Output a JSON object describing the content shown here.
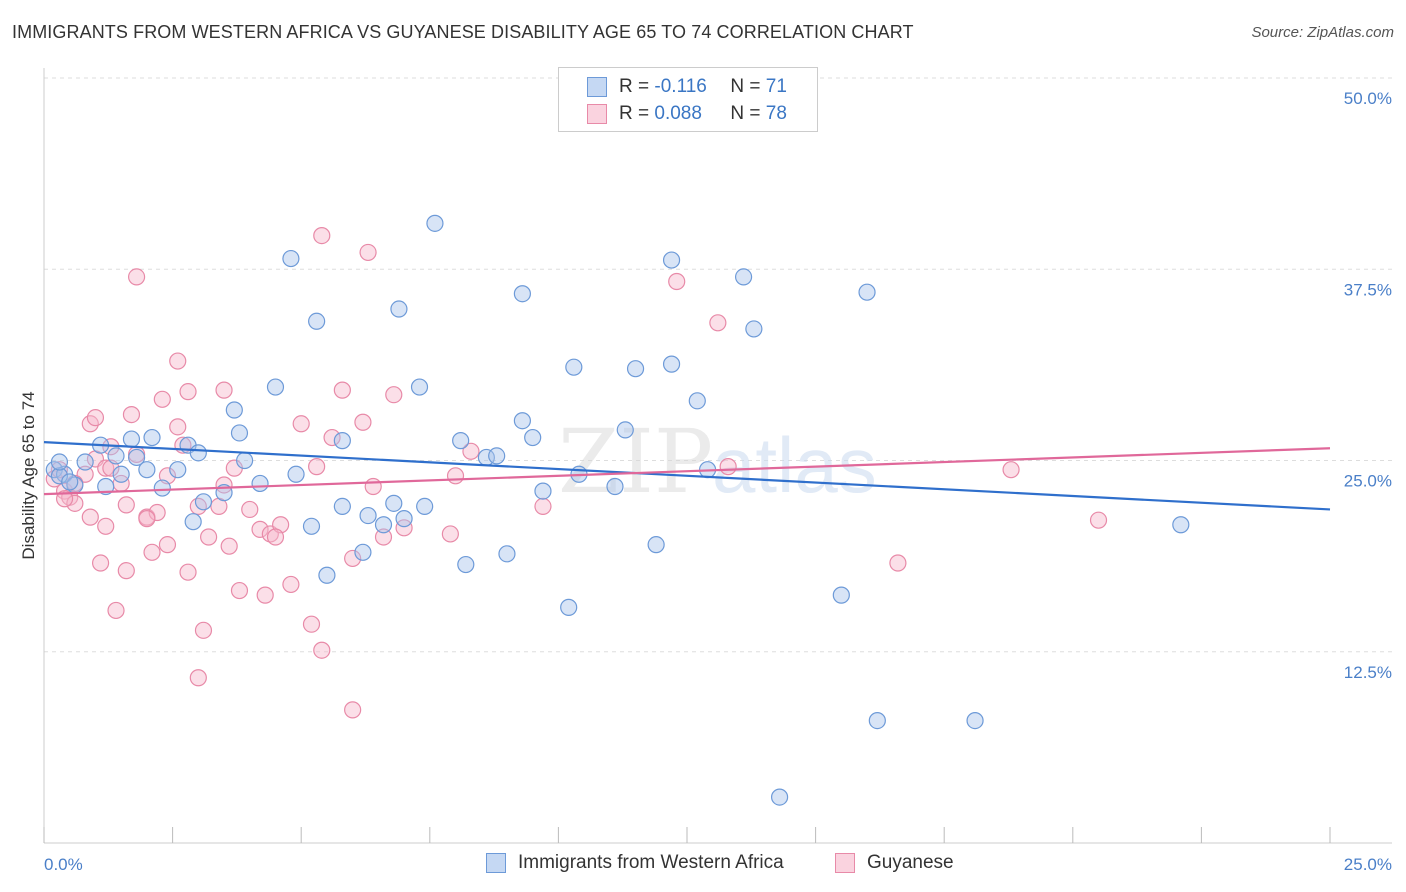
{
  "header": {
    "title": "IMMIGRANTS FROM WESTERN AFRICA VS GUYANESE DISABILITY AGE 65 TO 74 CORRELATION CHART",
    "source": "Source: ZipAtlas.com"
  },
  "legend": {
    "r_label": "R =",
    "n_label": "N =",
    "rows": [
      {
        "r": "-0.116",
        "n": "71"
      },
      {
        "r": "0.088",
        "n": "78"
      }
    ]
  },
  "colors": {
    "blue_fill": "#a8c4ec",
    "blue_stroke": "#6d9ad8",
    "blue_line": "#2f6fcc",
    "pink_fill": "#f6b8cc",
    "pink_stroke": "#e88aa8",
    "pink_line": "#e0689a",
    "grid": "#dddddd",
    "tick_text": "#4a7fc8"
  },
  "watermark": {
    "zip": "ZIP",
    "atlas": "atlas"
  },
  "chart_data": {
    "type": "scatter",
    "title": "IMMIGRANTS FROM WESTERN AFRICA VS GUYANESE DISABILITY AGE 65 TO 74 CORRELATION CHART",
    "xlabel": "",
    "ylabel": "Disability Age 65 to 74",
    "xlim": [
      0,
      25
    ],
    "ylim": [
      0,
      50
    ],
    "x_tick_labels": [
      "0.0%",
      "25.0%"
    ],
    "y_ticks": [
      12.5,
      25,
      37.5,
      50
    ],
    "y_tick_labels": [
      "12.5%",
      "25.0%",
      "37.5%",
      "50.0%"
    ],
    "grid": true,
    "legend_position": "top-center",
    "series": [
      {
        "name": "Immigrants from Western Africa",
        "r": -0.116,
        "n": 71,
        "trend": {
          "x": [
            0,
            25
          ],
          "y": [
            26.2,
            21.8
          ]
        },
        "points": [
          [
            0.2,
            24.4
          ],
          [
            0.4,
            24.1
          ],
          [
            0.6,
            23.4
          ],
          [
            0.3,
            24.0
          ],
          [
            0.5,
            23.6
          ],
          [
            0.8,
            24.9
          ],
          [
            1.1,
            26.0
          ],
          [
            1.4,
            25.3
          ],
          [
            1.7,
            26.4
          ],
          [
            1.8,
            25.2
          ],
          [
            1.5,
            24.1
          ],
          [
            2.0,
            24.4
          ],
          [
            2.1,
            26.5
          ],
          [
            2.3,
            23.2
          ],
          [
            1.2,
            23.3
          ],
          [
            2.6,
            24.4
          ],
          [
            2.8,
            26.0
          ],
          [
            3.1,
            22.3
          ],
          [
            3.5,
            22.9
          ],
          [
            3.9,
            25.0
          ],
          [
            4.2,
            23.5
          ],
          [
            4.5,
            29.8
          ],
          [
            3.7,
            28.3
          ],
          [
            2.9,
            21.0
          ],
          [
            3.8,
            26.8
          ],
          [
            4.9,
            24.1
          ],
          [
            5.2,
            20.7
          ],
          [
            5.5,
            17.5
          ],
          [
            5.8,
            22.0
          ],
          [
            6.3,
            21.4
          ],
          [
            6.8,
            22.2
          ],
          [
            6.6,
            20.8
          ],
          [
            7.0,
            21.2
          ],
          [
            7.4,
            22.0
          ],
          [
            8.1,
            26.3
          ],
          [
            8.6,
            25.2
          ],
          [
            8.8,
            25.3
          ],
          [
            9.3,
            27.6
          ],
          [
            9.5,
            26.5
          ],
          [
            9.0,
            18.9
          ],
          [
            9.7,
            23.0
          ],
          [
            10.4,
            24.1
          ],
          [
            11.1,
            23.3
          ],
          [
            11.3,
            27.0
          ],
          [
            11.9,
            19.5
          ],
          [
            12.7,
            28.9
          ],
          [
            12.9,
            24.4
          ],
          [
            13.6,
            37.0
          ],
          [
            13.8,
            33.6
          ],
          [
            7.6,
            40.5
          ],
          [
            4.8,
            38.2
          ],
          [
            5.3,
            34.1
          ],
          [
            6.9,
            34.9
          ],
          [
            9.3,
            35.9
          ],
          [
            12.2,
            38.1
          ],
          [
            10.3,
            31.1
          ],
          [
            11.5,
            31.0
          ],
          [
            12.2,
            31.3
          ],
          [
            16.0,
            36.0
          ],
          [
            7.3,
            29.8
          ],
          [
            3.0,
            25.5
          ],
          [
            5.8,
            26.3
          ],
          [
            6.2,
            19.0
          ],
          [
            8.2,
            18.2
          ],
          [
            10.2,
            15.4
          ],
          [
            15.5,
            16.2
          ],
          [
            16.2,
            8.0
          ],
          [
            18.1,
            8.0
          ],
          [
            14.3,
            3.0
          ],
          [
            22.1,
            20.8
          ],
          [
            0.3,
            24.9
          ]
        ]
      },
      {
        "name": "Guyanese",
        "r": 0.088,
        "n": 78,
        "trend": {
          "x": [
            0,
            25
          ],
          "y": [
            22.8,
            25.8
          ]
        },
        "points": [
          [
            0.2,
            23.8
          ],
          [
            0.3,
            24.4
          ],
          [
            0.4,
            23.0
          ],
          [
            0.5,
            22.6
          ],
          [
            0.6,
            22.2
          ],
          [
            0.8,
            24.1
          ],
          [
            0.9,
            27.4
          ],
          [
            1.0,
            25.1
          ],
          [
            1.2,
            24.5
          ],
          [
            1.3,
            25.9
          ],
          [
            1.5,
            23.5
          ],
          [
            1.6,
            22.1
          ],
          [
            1.8,
            25.4
          ],
          [
            2.0,
            21.3
          ],
          [
            2.2,
            21.6
          ],
          [
            2.4,
            24.0
          ],
          [
            2.6,
            27.2
          ],
          [
            2.8,
            29.5
          ],
          [
            3.0,
            22.0
          ],
          [
            3.2,
            20.0
          ],
          [
            3.4,
            22.0
          ],
          [
            3.5,
            29.6
          ],
          [
            3.7,
            24.5
          ],
          [
            4.0,
            21.8
          ],
          [
            4.2,
            20.5
          ],
          [
            4.4,
            20.2
          ],
          [
            4.6,
            20.8
          ],
          [
            4.8,
            16.9
          ],
          [
            5.0,
            27.4
          ],
          [
            5.2,
            14.3
          ],
          [
            5.4,
            12.6
          ],
          [
            5.6,
            26.5
          ],
          [
            5.8,
            29.6
          ],
          [
            6.0,
            18.6
          ],
          [
            6.2,
            27.5
          ],
          [
            6.4,
            23.3
          ],
          [
            6.6,
            20.0
          ],
          [
            6.8,
            29.3
          ],
          [
            7.0,
            20.6
          ],
          [
            1.8,
            37.0
          ],
          [
            2.6,
            31.5
          ],
          [
            5.4,
            39.7
          ],
          [
            6.3,
            38.6
          ],
          [
            1.7,
            28.0
          ],
          [
            1.0,
            27.8
          ],
          [
            2.0,
            21.2
          ],
          [
            1.2,
            20.7
          ],
          [
            1.4,
            15.2
          ],
          [
            1.6,
            17.8
          ],
          [
            2.1,
            19.0
          ],
          [
            3.1,
            13.9
          ],
          [
            3.0,
            10.8
          ],
          [
            3.6,
            19.4
          ],
          [
            4.3,
            16.2
          ],
          [
            2.8,
            17.7
          ],
          [
            1.1,
            18.3
          ],
          [
            2.4,
            19.5
          ],
          [
            3.8,
            16.5
          ],
          [
            6.0,
            8.7
          ],
          [
            8.0,
            24.0
          ],
          [
            8.3,
            25.6
          ],
          [
            9.7,
            22.0
          ],
          [
            12.3,
            36.7
          ],
          [
            13.1,
            34.0
          ],
          [
            13.3,
            24.6
          ],
          [
            16.6,
            18.3
          ],
          [
            18.8,
            24.4
          ],
          [
            20.5,
            21.1
          ],
          [
            3.5,
            23.4
          ],
          [
            4.5,
            20.0
          ],
          [
            0.9,
            21.3
          ],
          [
            2.3,
            29.0
          ],
          [
            7.9,
            20.2
          ],
          [
            5.3,
            24.6
          ],
          [
            0.4,
            22.5
          ],
          [
            1.3,
            24.5
          ],
          [
            2.7,
            26.0
          ],
          [
            0.6,
            23.5
          ]
        ]
      }
    ]
  },
  "bottom_legend": [
    "Immigrants from Western Africa",
    "Guyanese"
  ]
}
